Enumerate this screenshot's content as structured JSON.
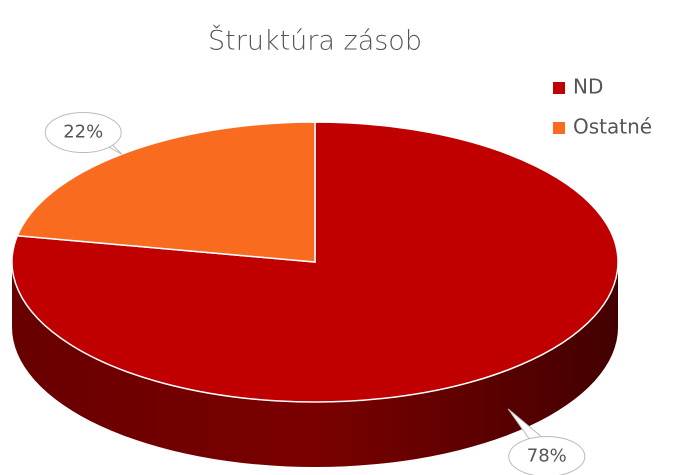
{
  "chart_data": {
    "type": "pie",
    "title": "Štruktúra zásob",
    "categories": [
      "ND",
      "Ostatné"
    ],
    "values": [
      78,
      22
    ],
    "value_labels": [
      "78%",
      "22%"
    ],
    "colors": [
      "#c00000",
      "#f96b1e"
    ],
    "side_colors": [
      "#7a0000",
      "#a8400f"
    ],
    "legend": "top-right"
  }
}
